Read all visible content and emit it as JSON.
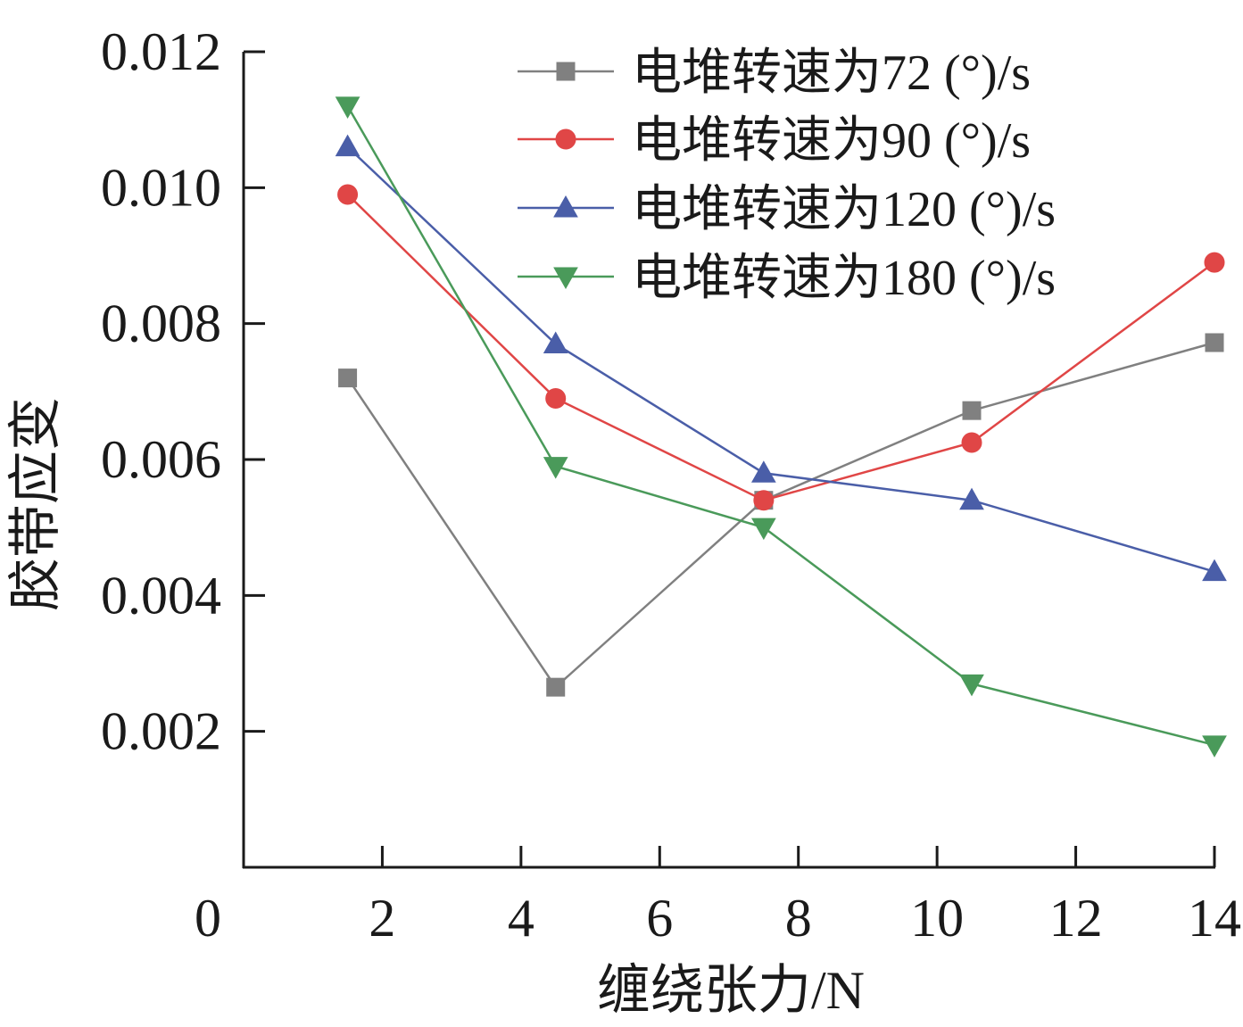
{
  "chart_data": {
    "type": "line",
    "title": "",
    "xlabel": "缠绕张力/N",
    "ylabel": "胶带应变",
    "xlim": [
      0,
      14
    ],
    "ylim": [
      0,
      0.012
    ],
    "origin_label": "0",
    "x_ticks": [
      2,
      4,
      6,
      8,
      10,
      12,
      14
    ],
    "x_tick_labels": [
      "2",
      "4",
      "6",
      "8",
      "10",
      "12",
      "14"
    ],
    "y_ticks": [
      0.002,
      0.004,
      0.006,
      0.008,
      0.01,
      0.012
    ],
    "y_tick_labels": [
      "0.002",
      "0.004",
      "0.006",
      "0.008",
      "0.010",
      "0.012"
    ],
    "grid": false,
    "legend_position": "top-right",
    "x": [
      1.5,
      4.5,
      7.5,
      10.5,
      14
    ],
    "series": [
      {
        "name": "电堆转速为72 (°)/s",
        "marker": "square",
        "color": "#808080",
        "values": [
          0.0072,
          0.00265,
          0.0054,
          0.00672,
          0.00772
        ]
      },
      {
        "name": "电堆转速为90 (°)/s",
        "marker": "circle",
        "color": "#e04646",
        "values": [
          0.0099,
          0.0069,
          0.0054,
          0.00625,
          0.0089
        ]
      },
      {
        "name": "电堆转速为120 (°)/s",
        "marker": "triangle-up",
        "color": "#4a5ea8",
        "values": [
          0.0106,
          0.0077,
          0.0058,
          0.0054,
          0.00435
        ]
      },
      {
        "name": "电堆转速为180 (°)/s",
        "marker": "triangle-down",
        "color": "#4a9a5a",
        "values": [
          0.0112,
          0.0059,
          0.005,
          0.0027,
          0.0018
        ]
      }
    ]
  }
}
